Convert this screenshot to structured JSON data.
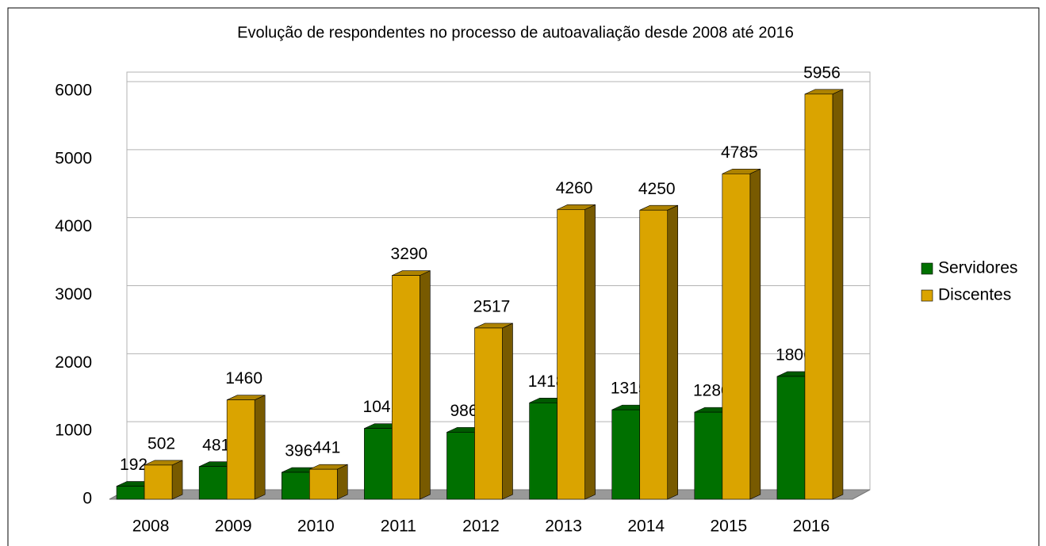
{
  "chart_data": {
    "type": "bar3d",
    "title": "Evolução de respondentes no processo de autoavaliação desde 2008 até 2016",
    "categories": [
      "2008",
      "2009",
      "2010",
      "2011",
      "2012",
      "2013",
      "2014",
      "2015",
      "2016"
    ],
    "series": [
      {
        "name": "Servidores",
        "color": "#007000",
        "values": [
          192,
          481,
          396,
          1041,
          986,
          1418,
          1315,
          1280,
          1806
        ]
      },
      {
        "name": "Discentes",
        "color": "#daa400",
        "values": [
          502,
          1460,
          441,
          3290,
          2517,
          4260,
          4250,
          4785,
          5956
        ]
      }
    ],
    "ylim": [
      0,
      6000
    ],
    "yticks": [
      0,
      1000,
      2000,
      3000,
      4000,
      5000,
      6000
    ],
    "grid": true,
    "legend": "right"
  }
}
